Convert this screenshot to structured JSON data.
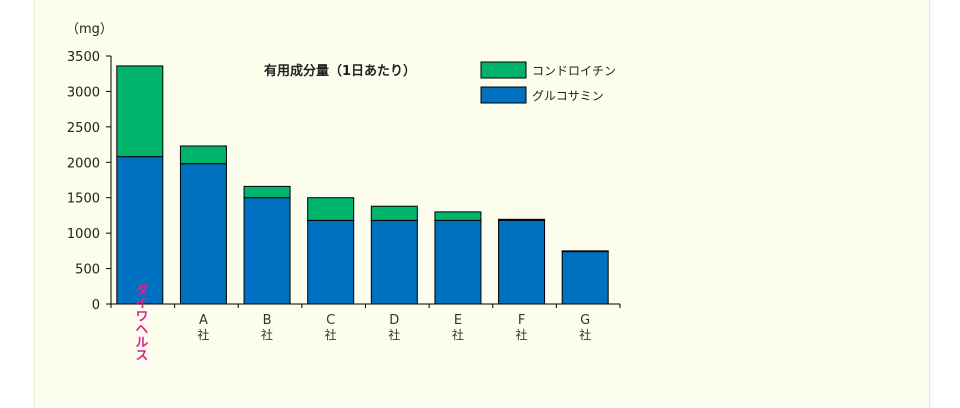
{
  "chart_data": {
    "type": "bar",
    "stacked": true,
    "title": "有用成分量（1日あたり）",
    "unit": "（mg）",
    "ylim": [
      0,
      3500
    ],
    "yticks": [
      "3500",
      "3000",
      "2500",
      "2000",
      "1500",
      "1000",
      "500",
      "0"
    ],
    "categories": [
      {
        "line1": "ダイワヘルス",
        "line2": "",
        "vertical": true,
        "highlight": true
      },
      {
        "line1": "A",
        "line2": "社",
        "vertical": false,
        "highlight": false
      },
      {
        "line1": "B",
        "line2": "社",
        "vertical": false,
        "highlight": false
      },
      {
        "line1": "C",
        "line2": "社",
        "vertical": false,
        "highlight": false
      },
      {
        "line1": "D",
        "line2": "社",
        "vertical": false,
        "highlight": false
      },
      {
        "line1": "E",
        "line2": "社",
        "vertical": false,
        "highlight": false
      },
      {
        "line1": "F",
        "line2": "社",
        "vertical": false,
        "highlight": false
      },
      {
        "line1": "G",
        "line2": "社",
        "vertical": false,
        "highlight": false
      }
    ],
    "series": [
      {
        "name": "グルコサミン",
        "color": "#0070c0",
        "values": [
          2080,
          1980,
          1500,
          1180,
          1180,
          1180,
          1180,
          740
        ]
      },
      {
        "name": "コンドロイチン",
        "color": "#00b46e",
        "values": [
          1280,
          250,
          160,
          320,
          200,
          120,
          15,
          10
        ]
      }
    ],
    "legend": {
      "position": "top-right",
      "order": [
        "コンドロイチン",
        "グルコサミン"
      ]
    },
    "highlight_color": "#e0208c",
    "grid": false
  }
}
